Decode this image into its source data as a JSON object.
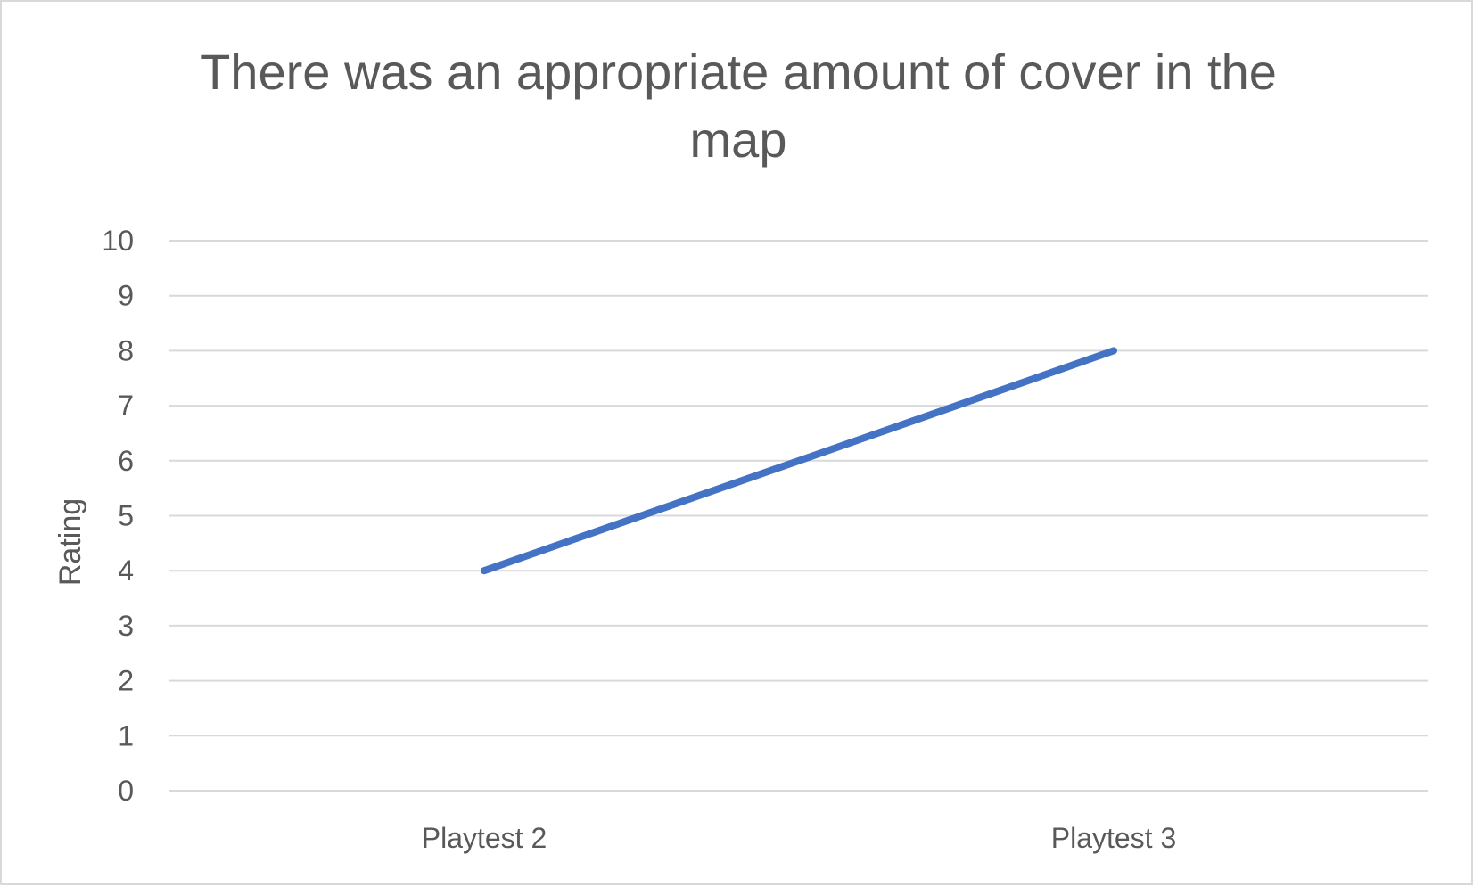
{
  "chart_data": {
    "type": "line",
    "title_lines": [
      "There was an appropriate amount of cover in the",
      "map"
    ],
    "categories": [
      "Playtest 2",
      "Playtest 3"
    ],
    "series": [
      {
        "values": [
          4,
          8
        ],
        "color": "#4472c4"
      }
    ],
    "xlabel": "",
    "ylabel": "Rating",
    "ylim": [
      0,
      10
    ],
    "yticks": [
      0,
      1,
      2,
      3,
      4,
      5,
      6,
      7,
      8,
      9,
      10
    ],
    "grid": true,
    "gridline_color": "#d9d9d9",
    "text_color": "#595959",
    "legend": "none"
  }
}
